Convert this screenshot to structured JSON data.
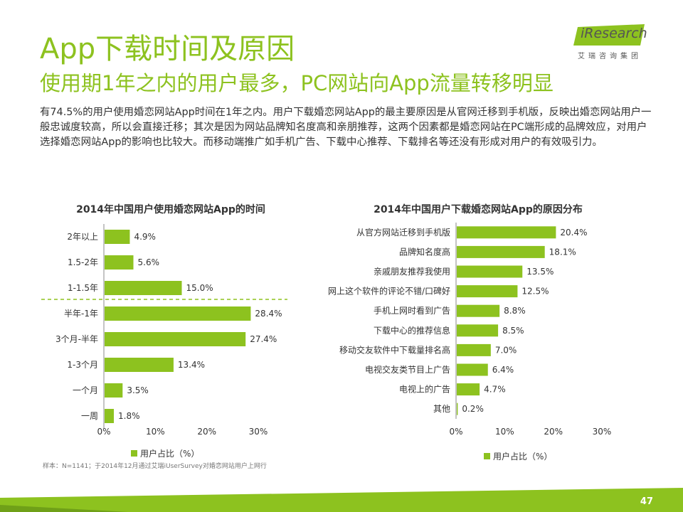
{
  "header": {
    "title": "App下载时间及原因",
    "subtitle": "使用期1年之内的用户最多，PC网站向App流量转移明显",
    "intro": "有74.5%的用户使用婚恋网站App时间在1年之内。用户下载婚恋网站App的最主要原因是从官网迁移到手机版，反映出婚恋网站用户一般忠诚度较高，所以会直接迁移；其次是因为网站品牌知名度高和亲朋推荐，这两个因素都是婚恋网站在PC端形成的品牌效应，对用户选择婚恋网站App的影响也比较大。而移动端推广如手机广告、下载中心推荐、下载排名等还没有形成对用户的有效吸引力。"
  },
  "logo": {
    "brand": "iResearch",
    "sub": "艾瑞咨询集团"
  },
  "colors": {
    "accent": "#8dc21f",
    "bar": "#8dc21f",
    "text": "#333333"
  },
  "chart_data": [
    {
      "type": "bar",
      "orientation": "horizontal",
      "title": "2014年中国用户使用婚恋网站App的时间",
      "categories": [
        "2年以上",
        "1.5-2年",
        "1-1.5年",
        "半年-1年",
        "3个月-半年",
        "1-3个月",
        "一个月",
        "一周"
      ],
      "value_labels": [
        "4.9%",
        "5.6%",
        "15.0%",
        "28.4%",
        "27.4%",
        "13.4%",
        "3.5%",
        "1.8%"
      ],
      "series": [
        {
          "name": "用户占比（%）",
          "values": [
            4.9,
            5.6,
            15.0,
            28.4,
            27.4,
            13.4,
            3.5,
            1.8
          ]
        }
      ],
      "xlim": [
        0,
        30
      ],
      "xticks": [
        "0%",
        "10%",
        "20%",
        "30%"
      ],
      "divider_after_index": 2,
      "legend": "bottom"
    },
    {
      "type": "bar",
      "orientation": "horizontal",
      "title": "2014年中国用户下载婚恋网站App的原因分布",
      "categories": [
        "从官方网站迁移到手机版",
        "品牌知名度高",
        "亲戚朋友推荐我使用",
        "网上这个软件的评论不错/口碑好",
        "手机上网时看到广告",
        "下载中心的推荐信息",
        "移动交友软件中下载量排名高",
        "电视交友类节目上广告",
        "电视上的广告",
        "其他"
      ],
      "value_labels": [
        "20.4%",
        "18.1%",
        "13.5%",
        "12.5%",
        "8.8%",
        "8.5%",
        "7.0%",
        "6.4%",
        "4.7%",
        "0.2%"
      ],
      "series": [
        {
          "name": "用户占比（%）",
          "values": [
            20.4,
            18.1,
            13.5,
            12.5,
            8.8,
            8.5,
            7.0,
            6.4,
            4.7,
            0.2
          ]
        }
      ],
      "xlim": [
        0,
        30
      ],
      "xticks": [
        "0%",
        "10%",
        "20%",
        "30%"
      ],
      "legend": "bottom"
    }
  ],
  "footer": {
    "source": "样本：N=1141；于2014年12月通过艾瑞iUserSurvey对婚恋网站用户上网行",
    "page_number": "47"
  }
}
